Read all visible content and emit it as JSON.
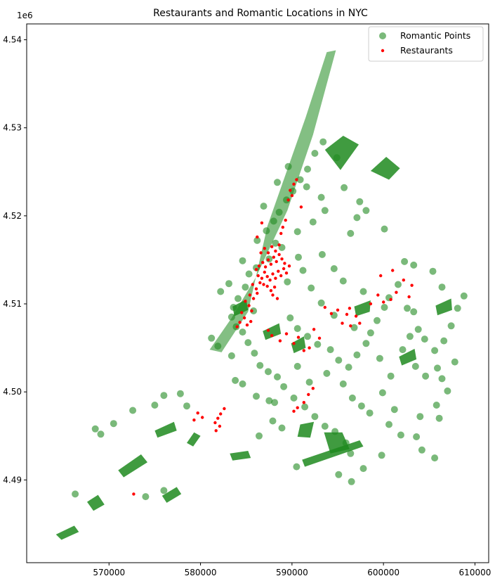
{
  "chart_data": {
    "type": "scatter",
    "title": "Restaurants and Romantic Locations in NYC",
    "xlabel": "",
    "ylabel": "",
    "y_offset_label": "1e6",
    "xlim": [
      561000,
      611500
    ],
    "ylim": [
      4480600,
      4541800
    ],
    "x_ticks": [
      570000,
      580000,
      590000,
      600000,
      610000
    ],
    "x_tick_labels": [
      "570000",
      "580000",
      "590000",
      "600000",
      "610000"
    ],
    "y_ticks": [
      4490000,
      4500000,
      4510000,
      4520000,
      4530000,
      4540000
    ],
    "y_tick_labels": [
      "4.49",
      "4.50",
      "4.51",
      "4.52",
      "4.53",
      "4.54"
    ],
    "grid": false,
    "legend_position": "top-right",
    "colors": {
      "parks": "#1e8a1e",
      "romantic": "#228b22",
      "restaurants": "#ff0000"
    },
    "parks": [
      [
        [
          587300,
          4518800
        ],
        [
          591500,
          4531200
        ],
        [
          593800,
          4538600
        ],
        [
          594800,
          4538800
        ],
        [
          592300,
          4529200
        ],
        [
          589500,
          4520600
        ],
        [
          586100,
          4513100
        ],
        [
          583400,
          4508400
        ],
        [
          581000,
          4504800
        ],
        [
          582300,
          4504500
        ],
        [
          585200,
          4509100
        ]
      ],
      [
        [
          593600,
          4527500
        ],
        [
          595600,
          4529100
        ],
        [
          597300,
          4528100
        ],
        [
          595300,
          4525200
        ]
      ],
      [
        [
          598600,
          4525100
        ],
        [
          600300,
          4526700
        ],
        [
          601800,
          4525400
        ],
        [
          600600,
          4524100
        ]
      ],
      [
        [
          593500,
          4495400
        ],
        [
          595500,
          4495400
        ],
        [
          596300,
          4493500
        ],
        [
          594200,
          4493000
        ]
      ],
      [
        [
          590900,
          4496300
        ],
        [
          592400,
          4496600
        ],
        [
          592000,
          4494800
        ],
        [
          590600,
          4494900
        ]
      ],
      [
        [
          591100,
          4492300
        ],
        [
          597400,
          4494500
        ],
        [
          597800,
          4493800
        ],
        [
          591400,
          4491500
        ]
      ],
      [
        [
          583200,
          4493000
        ],
        [
          585200,
          4493300
        ],
        [
          585500,
          4492500
        ],
        [
          583500,
          4492200
        ]
      ],
      [
        [
          567600,
          4487500
        ],
        [
          568800,
          4488300
        ],
        [
          569500,
          4487200
        ],
        [
          568300,
          4486500
        ]
      ],
      [
        [
          571000,
          4491100
        ],
        [
          573500,
          4492900
        ],
        [
          574200,
          4492000
        ],
        [
          571600,
          4490300
        ]
      ],
      [
        [
          575000,
          4495600
        ],
        [
          577100,
          4496600
        ],
        [
          577400,
          4495600
        ],
        [
          575300,
          4494800
        ]
      ],
      [
        [
          575800,
          4488200
        ],
        [
          577400,
          4489200
        ],
        [
          577900,
          4488400
        ],
        [
          576300,
          4487400
        ]
      ],
      [
        [
          564200,
          4483800
        ],
        [
          566200,
          4484800
        ],
        [
          566700,
          4484100
        ],
        [
          564800,
          4483200
        ]
      ],
      [
        [
          578500,
          4494200
        ],
        [
          579300,
          4495400
        ],
        [
          580000,
          4495000
        ],
        [
          579200,
          4493800
        ]
      ],
      [
        [
          583500,
          4509700
        ],
        [
          585000,
          4510500
        ],
        [
          585200,
          4509300
        ],
        [
          583700,
          4508600
        ]
      ],
      [
        [
          586800,
          4506900
        ],
        [
          588600,
          4507800
        ],
        [
          588800,
          4506600
        ],
        [
          587100,
          4505900
        ]
      ],
      [
        [
          589900,
          4505500
        ],
        [
          591300,
          4506300
        ],
        [
          591500,
          4505000
        ],
        [
          590200,
          4504400
        ]
      ],
      [
        [
          596800,
          4509700
        ],
        [
          598600,
          4510400
        ],
        [
          598500,
          4509100
        ],
        [
          597000,
          4508600
        ]
      ],
      [
        [
          605700,
          4509800
        ],
        [
          607400,
          4510600
        ],
        [
          607500,
          4509300
        ],
        [
          605900,
          4508700
        ]
      ],
      [
        [
          601700,
          4504000
        ],
        [
          603400,
          4504900
        ],
        [
          603600,
          4503700
        ],
        [
          602000,
          4503000
        ]
      ]
    ],
    "romantic_points": [
      [
        586200,
        4517200
      ],
      [
        587200,
        4518300
      ],
      [
        588000,
        4519400
      ],
      [
        588600,
        4520400
      ],
      [
        589400,
        4521800
      ],
      [
        590100,
        4522800
      ],
      [
        590900,
        4524100
      ],
      [
        591700,
        4525300
      ],
      [
        592500,
        4527100
      ],
      [
        593400,
        4528400
      ],
      [
        594900,
        4526600
      ],
      [
        595700,
        4523200
      ],
      [
        597400,
        4521600
      ],
      [
        598100,
        4520600
      ],
      [
        593600,
        4520600
      ],
      [
        592300,
        4519300
      ],
      [
        590600,
        4518200
      ],
      [
        588900,
        4516400
      ],
      [
        587500,
        4515100
      ],
      [
        586100,
        4514100
      ],
      [
        585300,
        4513400
      ],
      [
        584900,
        4511900
      ],
      [
        584100,
        4510600
      ],
      [
        583600,
        4509600
      ],
      [
        583400,
        4508500
      ],
      [
        583900,
        4507400
      ],
      [
        584600,
        4506800
      ],
      [
        585200,
        4505600
      ],
      [
        585900,
        4504400
      ],
      [
        586500,
        4503000
      ],
      [
        587400,
        4502300
      ],
      [
        588400,
        4501700
      ],
      [
        589100,
        4500600
      ],
      [
        590200,
        4499300
      ],
      [
        591400,
        4498300
      ],
      [
        592500,
        4497200
      ],
      [
        593600,
        4496100
      ],
      [
        594700,
        4495500
      ],
      [
        595900,
        4494200
      ],
      [
        596400,
        4493000
      ],
      [
        589800,
        4508400
      ],
      [
        590600,
        4507200
      ],
      [
        591700,
        4506300
      ],
      [
        592800,
        4505400
      ],
      [
        594200,
        4504800
      ],
      [
        595100,
        4503600
      ],
      [
        596200,
        4502800
      ],
      [
        597100,
        4504200
      ],
      [
        598600,
        4506700
      ],
      [
        599300,
        4508100
      ],
      [
        600100,
        4509600
      ],
      [
        600600,
        4510700
      ],
      [
        597800,
        4511400
      ],
      [
        595600,
        4512600
      ],
      [
        594600,
        4514000
      ],
      [
        593300,
        4515600
      ],
      [
        591200,
        4513800
      ],
      [
        589500,
        4512500
      ],
      [
        602100,
        4504800
      ],
      [
        602900,
        4506300
      ],
      [
        603800,
        4507100
      ],
      [
        604500,
        4506000
      ],
      [
        605600,
        4504700
      ],
      [
        606600,
        4505800
      ],
      [
        607400,
        4507500
      ],
      [
        608100,
        4509500
      ],
      [
        608800,
        4510900
      ],
      [
        606400,
        4511900
      ],
      [
        605400,
        4513700
      ],
      [
        603300,
        4514400
      ],
      [
        601600,
        4512200
      ],
      [
        602600,
        4509500
      ],
      [
        603500,
        4502900
      ],
      [
        604600,
        4501800
      ],
      [
        606400,
        4501500
      ],
      [
        607000,
        4500100
      ],
      [
        600600,
        4496300
      ],
      [
        601900,
        4495100
      ],
      [
        603600,
        4494900
      ],
      [
        604200,
        4493400
      ],
      [
        605600,
        4492500
      ],
      [
        599800,
        4492800
      ],
      [
        597800,
        4491300
      ],
      [
        595100,
        4490600
      ],
      [
        596500,
        4489800
      ],
      [
        566300,
        4488400
      ],
      [
        568500,
        4495800
      ],
      [
        569100,
        4495200
      ],
      [
        570500,
        4496400
      ],
      [
        572600,
        4497900
      ],
      [
        575000,
        4498500
      ],
      [
        576000,
        4499600
      ],
      [
        577800,
        4499800
      ],
      [
        578500,
        4498400
      ],
      [
        576000,
        4488800
      ],
      [
        574000,
        4488100
      ],
      [
        583800,
        4501300
      ],
      [
        584600,
        4500900
      ],
      [
        586100,
        4499500
      ],
      [
        587500,
        4499000
      ],
      [
        588100,
        4498800
      ],
      [
        590600,
        4502900
      ],
      [
        591900,
        4501100
      ],
      [
        593800,
        4502100
      ],
      [
        595600,
        4500900
      ],
      [
        596600,
        4499300
      ],
      [
        597600,
        4498400
      ],
      [
        598500,
        4497600
      ],
      [
        599900,
        4499900
      ],
      [
        601200,
        4498000
      ],
      [
        604000,
        4497200
      ],
      [
        605800,
        4498500
      ],
      [
        606100,
        4497000
      ],
      [
        589600,
        4525600
      ],
      [
        588400,
        4523800
      ],
      [
        591600,
        4523300
      ],
      [
        593200,
        4522100
      ],
      [
        586900,
        4521100
      ],
      [
        588200,
        4516900
      ],
      [
        584600,
        4514900
      ],
      [
        583100,
        4512300
      ],
      [
        582200,
        4511400
      ],
      [
        581200,
        4506100
      ],
      [
        581900,
        4505200
      ],
      [
        583400,
        4504100
      ],
      [
        585800,
        4509200
      ],
      [
        590700,
        4515300
      ],
      [
        592100,
        4511800
      ],
      [
        593200,
        4510100
      ],
      [
        594600,
        4508700
      ],
      [
        596800,
        4507300
      ],
      [
        598100,
        4505500
      ],
      [
        599600,
        4503800
      ],
      [
        600800,
        4501800
      ],
      [
        597100,
        4519800
      ],
      [
        596400,
        4518000
      ],
      [
        600100,
        4518500
      ],
      [
        602300,
        4514800
      ],
      [
        603300,
        4509100
      ],
      [
        605900,
        4502700
      ],
      [
        607800,
        4503400
      ],
      [
        586400,
        4495000
      ],
      [
        587900,
        4496700
      ],
      [
        588900,
        4495900
      ],
      [
        590500,
        4491500
      ]
    ],
    "restaurants": [
      [
        586100,
        4513900
      ],
      [
        586400,
        4514300
      ],
      [
        586800,
        4514700
      ],
      [
        587100,
        4514200
      ],
      [
        587400,
        4515000
      ],
      [
        587700,
        4514500
      ],
      [
        588000,
        4515300
      ],
      [
        588300,
        4514800
      ],
      [
        588600,
        4515600
      ],
      [
        588900,
        4515100
      ],
      [
        589200,
        4514600
      ],
      [
        586300,
        4513200
      ],
      [
        586700,
        4512900
      ],
      [
        587000,
        4513600
      ],
      [
        587300,
        4513100
      ],
      [
        587600,
        4512700
      ],
      [
        587900,
        4513400
      ],
      [
        588200,
        4512900
      ],
      [
        588500,
        4513700
      ],
      [
        588800,
        4513200
      ],
      [
        589100,
        4514000
      ],
      [
        589400,
        4513500
      ],
      [
        589700,
        4514300
      ],
      [
        586600,
        4515800
      ],
      [
        587000,
        4516300
      ],
      [
        587400,
        4515800
      ],
      [
        587800,
        4516500
      ],
      [
        588200,
        4516000
      ],
      [
        588600,
        4516700
      ],
      [
        585700,
        4512200
      ],
      [
        586100,
        4511700
      ],
      [
        586500,
        4512400
      ],
      [
        585400,
        4511000
      ],
      [
        585800,
        4510600
      ],
      [
        586200,
        4511200
      ],
      [
        584900,
        4510300
      ],
      [
        585300,
        4509800
      ],
      [
        585600,
        4509200
      ],
      [
        584500,
        4509000
      ],
      [
        584800,
        4508400
      ],
      [
        584300,
        4507900
      ],
      [
        584000,
        4507400
      ],
      [
        585100,
        4507600
      ],
      [
        585500,
        4508000
      ],
      [
        587300,
        4512000
      ],
      [
        587700,
        4511500
      ],
      [
        588100,
        4511900
      ],
      [
        586900,
        4512200
      ],
      [
        589600,
        4521800
      ],
      [
        589800,
        4522900
      ],
      [
        590000,
        4522300
      ],
      [
        590200,
        4523600
      ],
      [
        590500,
        4524100
      ],
      [
        591000,
        4521000
      ],
      [
        588800,
        4518000
      ],
      [
        589300,
        4519500
      ],
      [
        589000,
        4518700
      ],
      [
        586200,
        4517600
      ],
      [
        586700,
        4519200
      ],
      [
        587900,
        4511000
      ],
      [
        588400,
        4510600
      ],
      [
        587400,
        4507000
      ],
      [
        587800,
        4506400
      ],
      [
        588700,
        4505800
      ],
      [
        589400,
        4506600
      ],
      [
        590200,
        4505500
      ],
      [
        590700,
        4506200
      ],
      [
        591300,
        4504700
      ],
      [
        591900,
        4505000
      ],
      [
        593000,
        4506100
      ],
      [
        592400,
        4507100
      ],
      [
        593600,
        4509600
      ],
      [
        594300,
        4508900
      ],
      [
        595000,
        4509300
      ],
      [
        595500,
        4507800
      ],
      [
        596000,
        4508800
      ],
      [
        596400,
        4507500
      ],
      [
        597000,
        4508600
      ],
      [
        597400,
        4507800
      ],
      [
        596300,
        4509500
      ],
      [
        598600,
        4510000
      ],
      [
        599400,
        4511000
      ],
      [
        600000,
        4510200
      ],
      [
        600800,
        4510500
      ],
      [
        601400,
        4511300
      ],
      [
        602200,
        4512700
      ],
      [
        602800,
        4510800
      ],
      [
        603100,
        4512100
      ],
      [
        599700,
        4513200
      ],
      [
        601000,
        4513800
      ],
      [
        579700,
        4497600
      ],
      [
        580200,
        4497100
      ],
      [
        579300,
        4496800
      ],
      [
        581600,
        4496500
      ],
      [
        581900,
        4497000
      ],
      [
        582200,
        4497500
      ],
      [
        582600,
        4498100
      ],
      [
        581700,
        4495600
      ],
      [
        582100,
        4496100
      ],
      [
        590600,
        4498200
      ],
      [
        591300,
        4498800
      ],
      [
        591800,
        4499700
      ],
      [
        592300,
        4500400
      ],
      [
        590200,
        4497800
      ],
      [
        572700,
        4488400
      ]
    ]
  },
  "legend": {
    "items": [
      {
        "label": "Romantic Points",
        "marker": "circle-green"
      },
      {
        "label": "Restaurants",
        "marker": "dot-red"
      }
    ]
  }
}
